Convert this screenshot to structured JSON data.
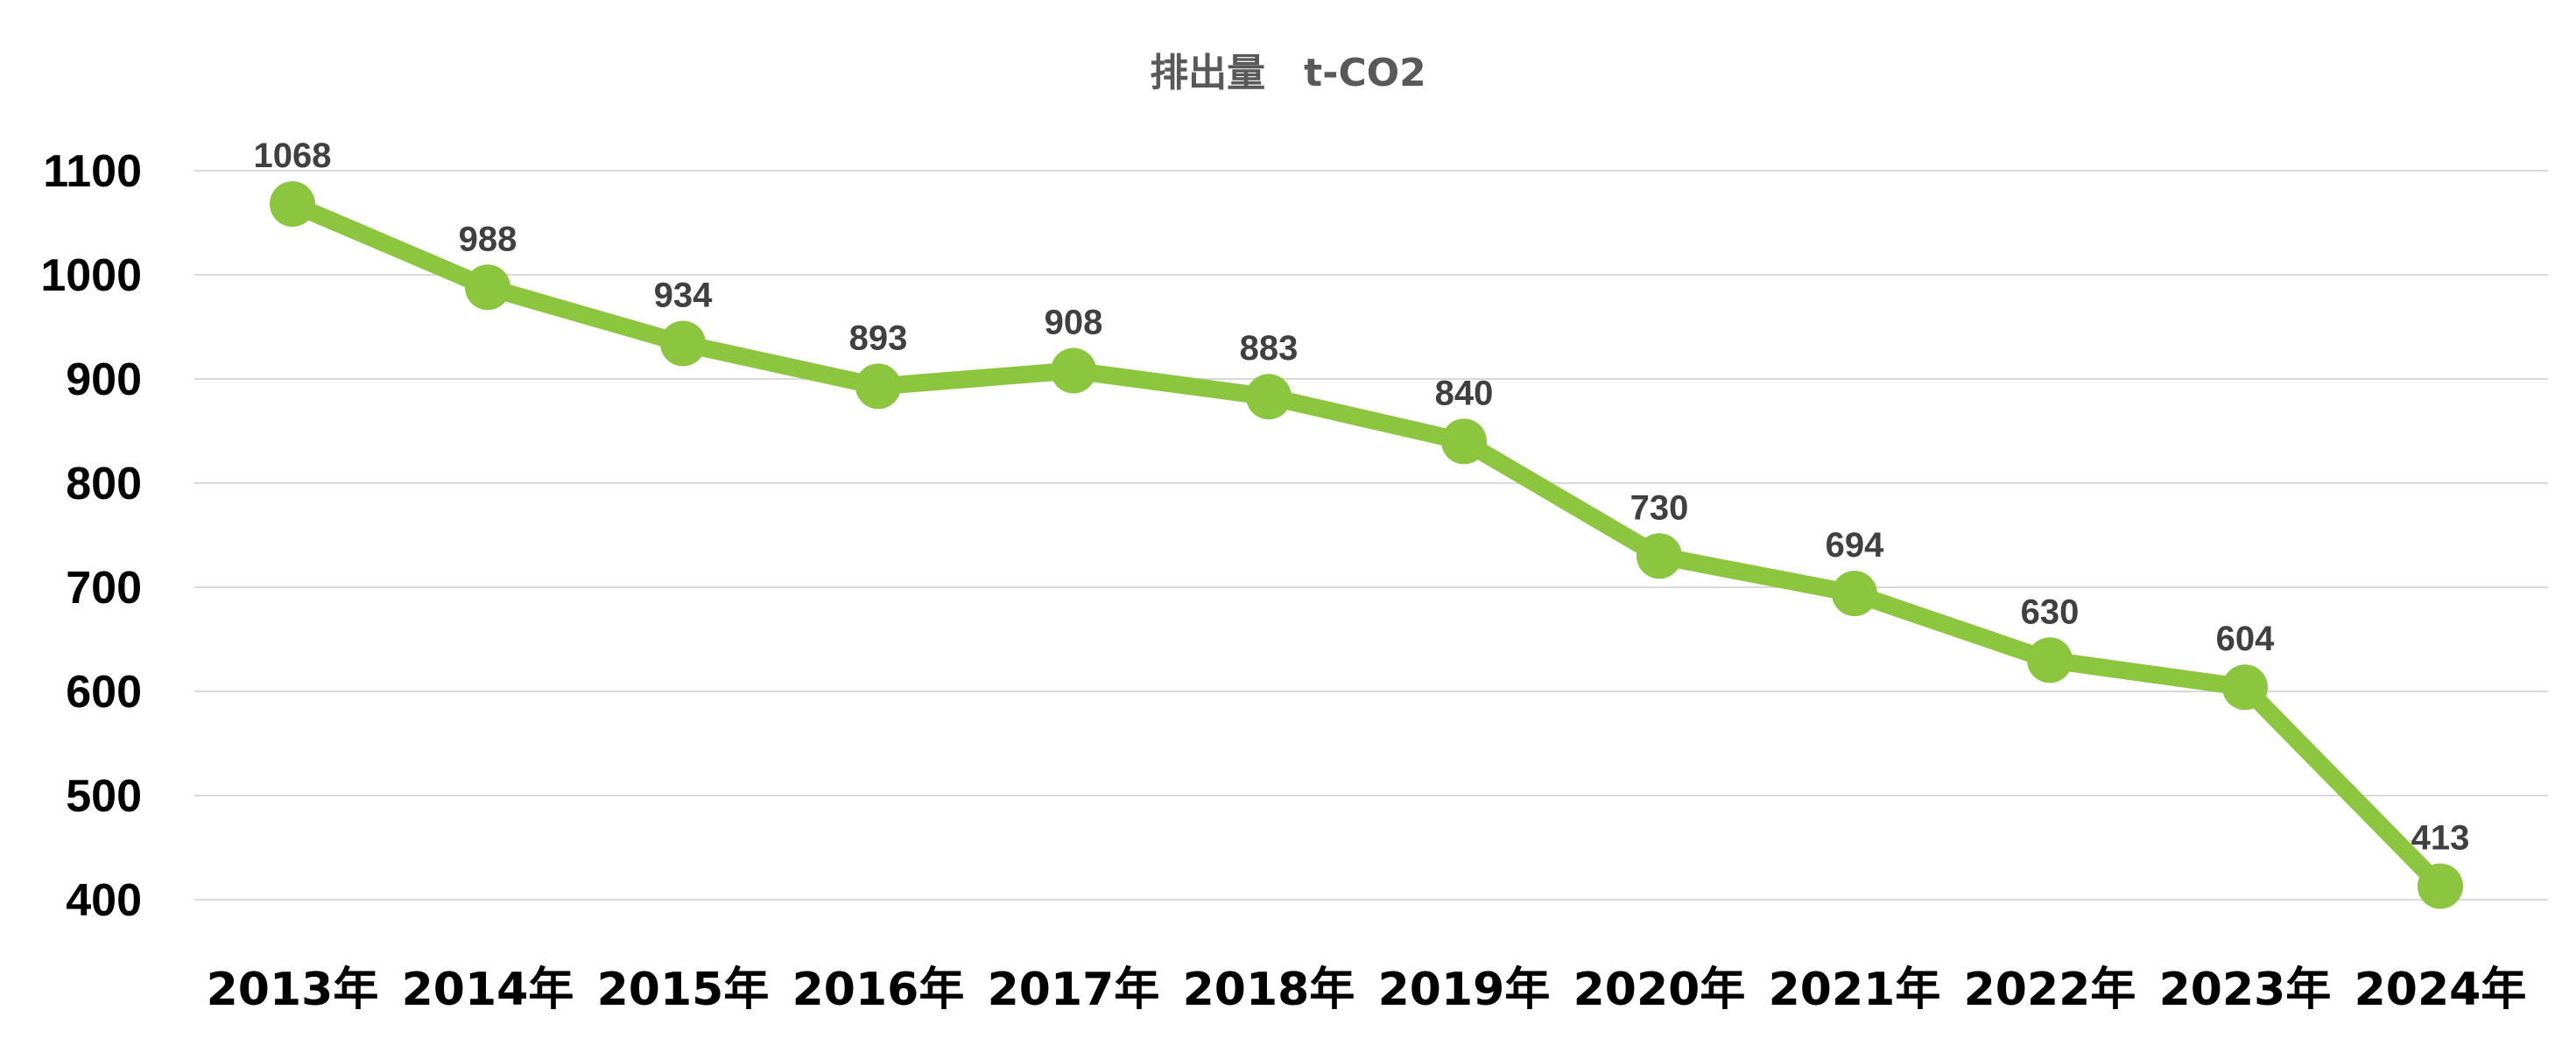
{
  "chart_data": {
    "type": "line",
    "title": "排出量　t-CO2",
    "xlabel": "",
    "ylabel": "",
    "categories": [
      "2013年",
      "2014年",
      "2015年",
      "2016年",
      "2017年",
      "2018年",
      "2019年",
      "2020年",
      "2021年",
      "2022年",
      "2023年",
      "2024年"
    ],
    "series": [
      {
        "values": [
          1068,
          988,
          934,
          893,
          908,
          883,
          840,
          730,
          694,
          630,
          604,
          413
        ]
      }
    ],
    "ylim": [
      400,
      1100
    ],
    "yticks": [
      1100,
      1000,
      900,
      800,
      700,
      600,
      500,
      400
    ],
    "grid": true,
    "legend": "none",
    "data_labels": true,
    "color": "#8cc63f"
  }
}
